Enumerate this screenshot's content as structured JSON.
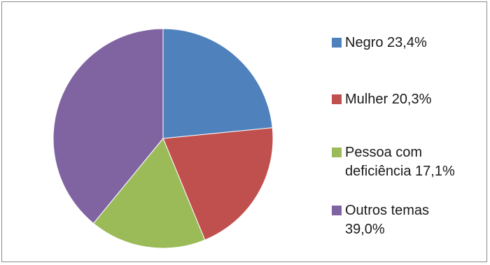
{
  "chart_data": {
    "type": "pie",
    "slices": [
      {
        "label": "Negro 23,4%",
        "value": 23.4,
        "color": "#4F81BD"
      },
      {
        "label": "Mulher 20,3%",
        "value": 20.3,
        "color": "#C0504D"
      },
      {
        "label": "Pessoa com deficiência 17,1%",
        "value": 17.1,
        "color": "#9BBB59"
      },
      {
        "label": "Outros temas 39,0%",
        "value": 39.0,
        "color": "#8064A2"
      }
    ],
    "start_angle_deg": 0,
    "direction": "clockwise",
    "legend_position": "right"
  },
  "legend": {
    "items": [
      {
        "text": "Negro 23,4%"
      },
      {
        "text": "Mulher 20,3%"
      },
      {
        "text": "Pessoa com deficiência 17,1%"
      },
      {
        "text": "Outros temas 39,0%"
      }
    ]
  }
}
